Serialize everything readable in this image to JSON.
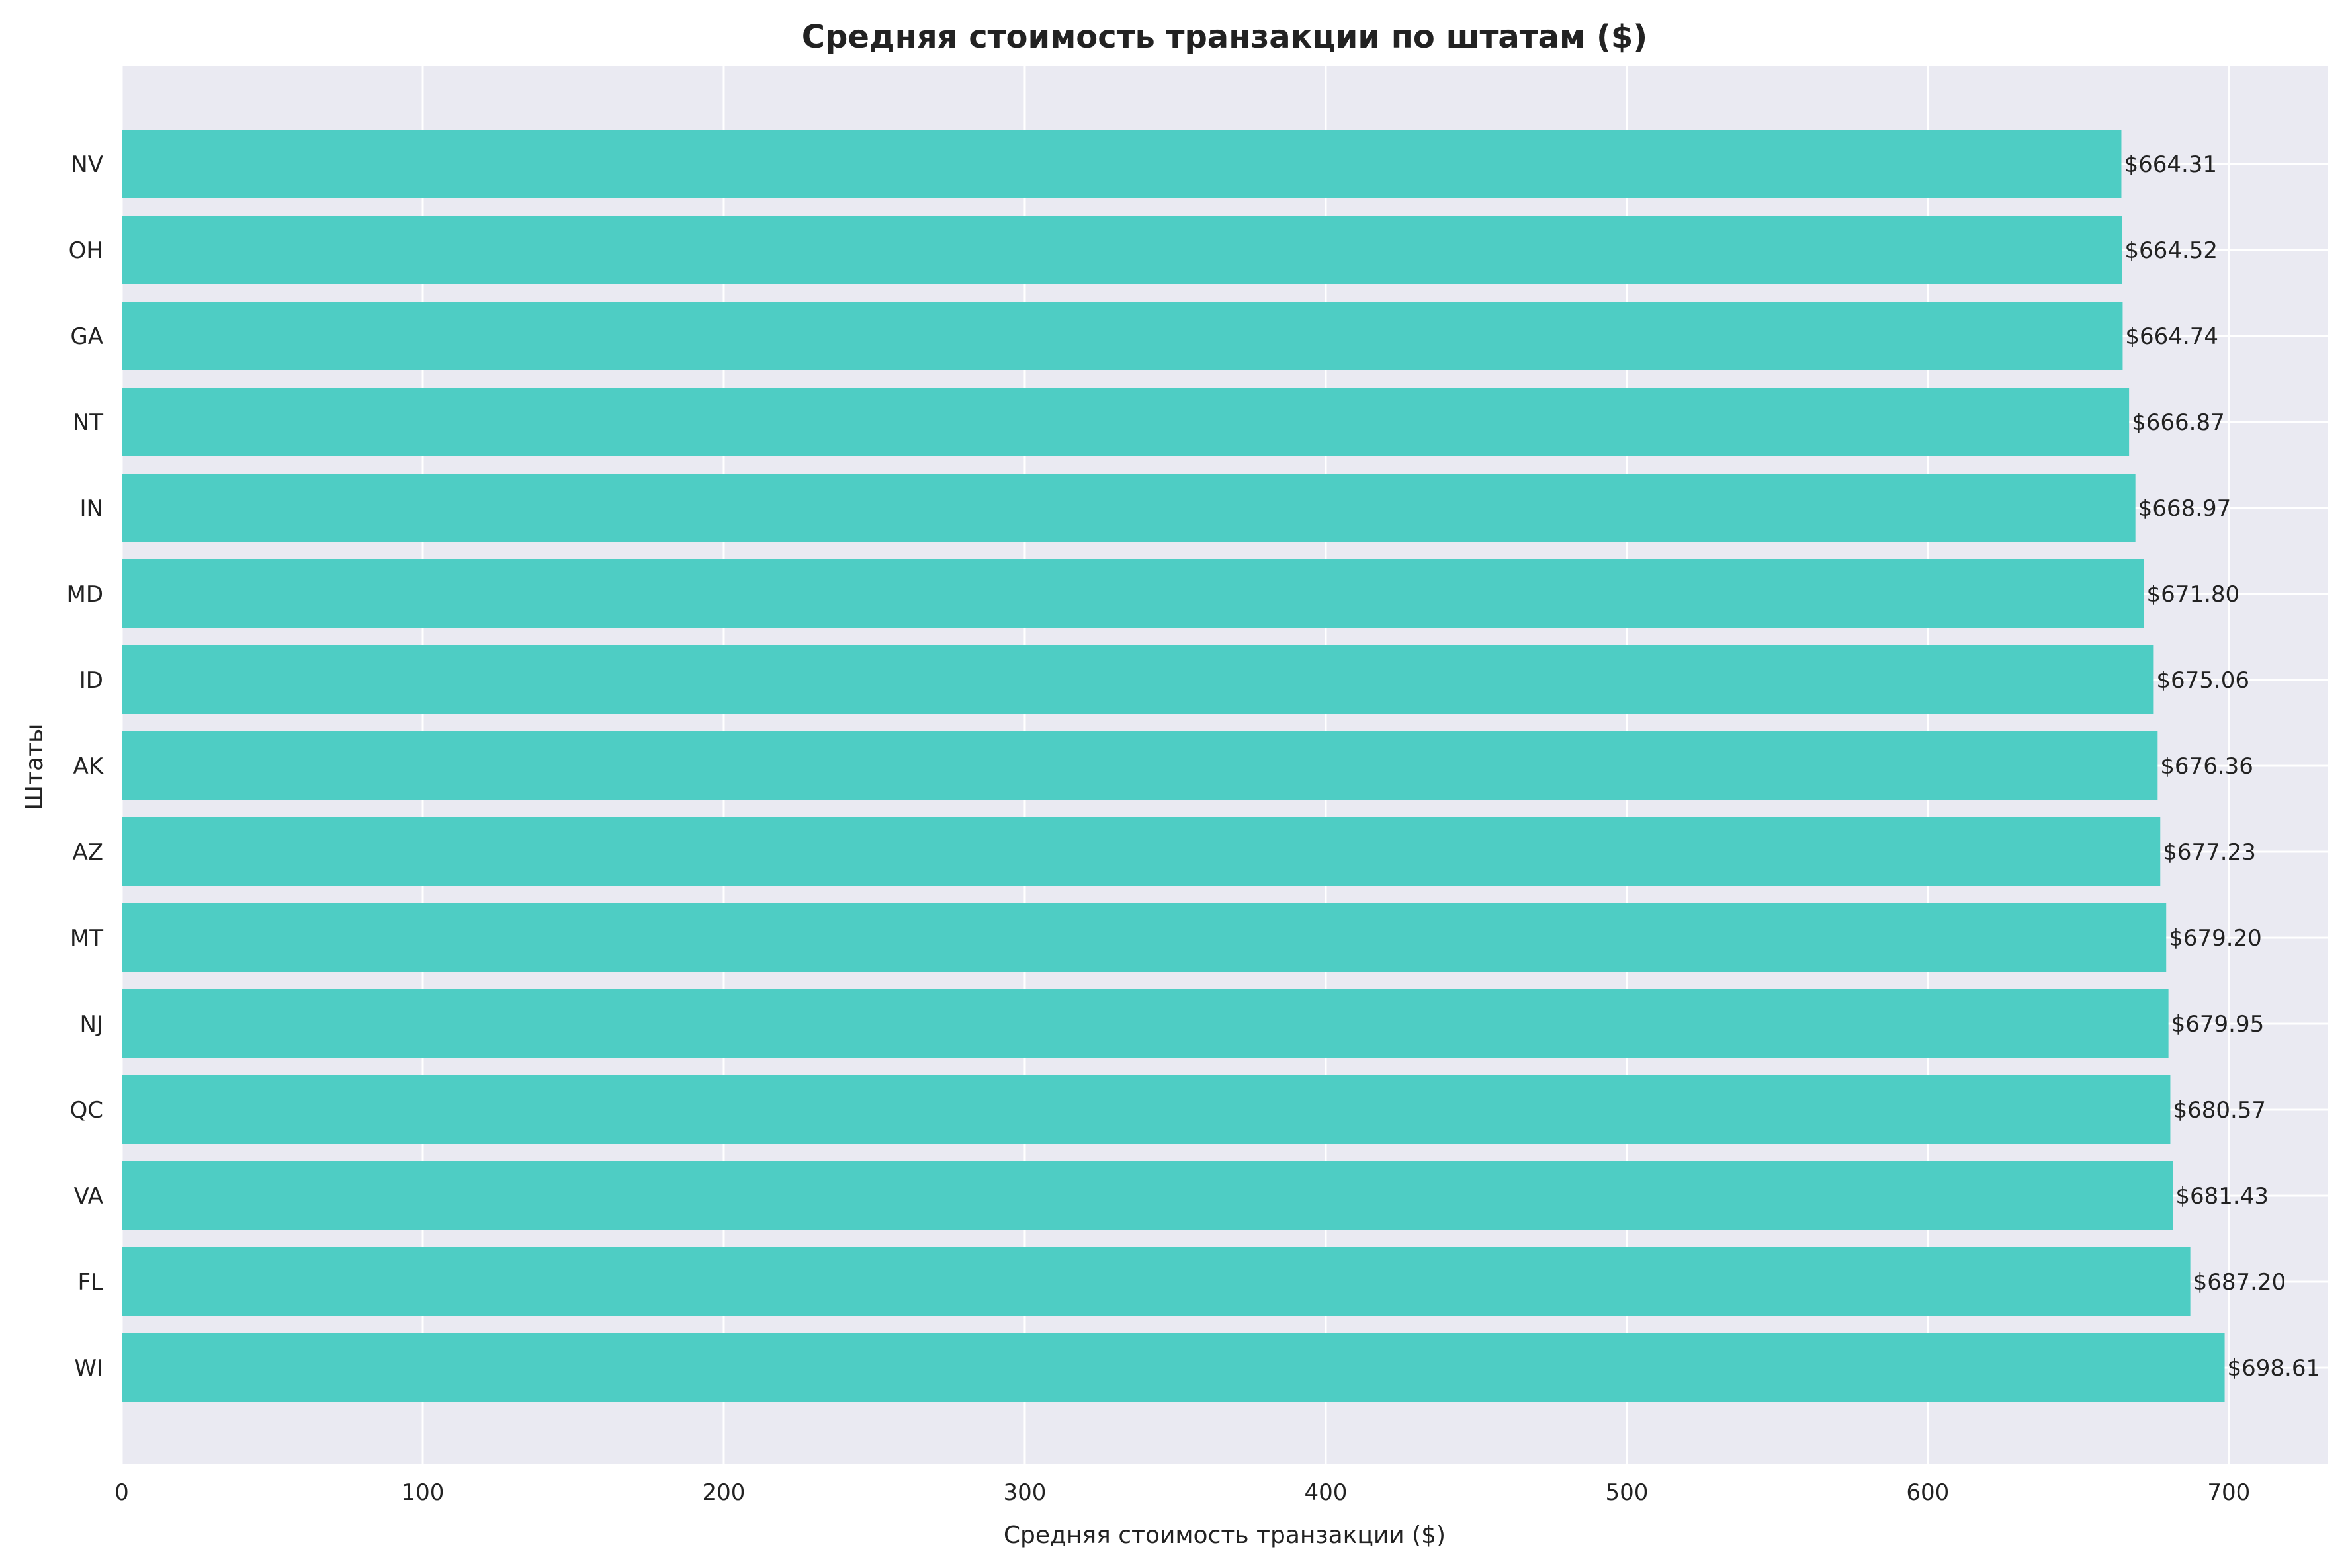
{
  "chart_data": {
    "type": "bar",
    "orientation": "horizontal",
    "title": "Средняя стоимость транзакции по штатам ($)",
    "xlabel": "Средняя стоимость транзакции ($)",
    "ylabel": "Штаты",
    "categories": [
      "NV",
      "OH",
      "GA",
      "NT",
      "IN",
      "MD",
      "ID",
      "AK",
      "AZ",
      "MT",
      "NJ",
      "QC",
      "VA",
      "FL",
      "WI"
    ],
    "values": [
      664.31,
      664.52,
      664.74,
      666.87,
      668.97,
      671.8,
      675.06,
      676.36,
      677.23,
      679.2,
      679.95,
      680.57,
      681.43,
      687.2,
      698.61
    ],
    "value_labels": [
      "$664.31",
      "$664.52",
      "$664.74",
      "$666.87",
      "$668.97",
      "$671.80",
      "$675.06",
      "$676.36",
      "$677.23",
      "$679.20",
      "$679.95",
      "$680.57",
      "$681.43",
      "$687.20",
      "$698.61"
    ],
    "xlim": [
      0,
      733
    ],
    "xticks": [
      0,
      100,
      200,
      300,
      400,
      500,
      600,
      700
    ],
    "grid": true,
    "colors": {
      "bar": "#4ecdc4",
      "plot_background": "#eaeaf2",
      "grid": "#ffffff"
    }
  }
}
